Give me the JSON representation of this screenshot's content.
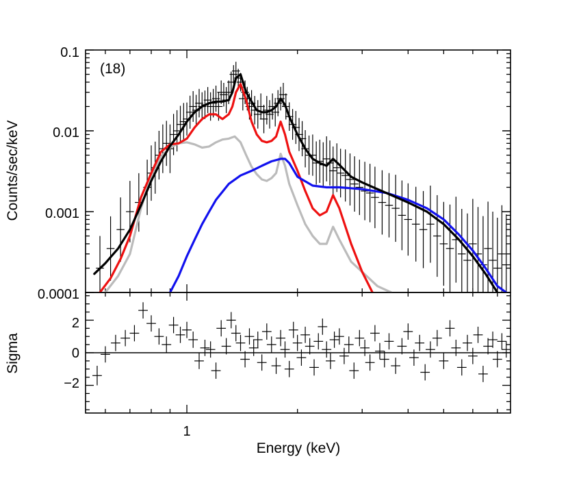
{
  "chart_data": [
    {
      "type": "line",
      "panel": "spectrum",
      "annotation": "(18)",
      "xlabel": "",
      "ylabel": "Counts/sec/keV",
      "xscale": "log",
      "yscale": "log",
      "xlim": [
        0.53,
        7.6
      ],
      "ylim": [
        0.0001,
        0.1
      ],
      "ytick_labels": [
        "0.1",
        "0.01",
        "0.001",
        "0.0001"
      ],
      "colors": {
        "total": "#000000",
        "red": "#ee1111",
        "gray": "#bbbbbb",
        "blue": "#1111ee",
        "data": "#000000"
      },
      "series": [
        {
          "name": "total model",
          "color": "#000000",
          "x": [
            0.56,
            0.6,
            0.65,
            0.7,
            0.75,
            0.8,
            0.85,
            0.9,
            0.95,
            1.0,
            1.05,
            1.1,
            1.15,
            1.2,
            1.25,
            1.3,
            1.33,
            1.36,
            1.4,
            1.45,
            1.5,
            1.55,
            1.6,
            1.65,
            1.7,
            1.75,
            1.8,
            1.85,
            1.9,
            2.0,
            2.1,
            2.2,
            2.3,
            2.4,
            2.5,
            2.6,
            2.8,
            3.0,
            3.3,
            3.6,
            4.0,
            4.5,
            5.0,
            5.5,
            6.0,
            6.5,
            7.0,
            7.5
          ],
          "y": [
            0.00017,
            0.00023,
            0.00035,
            0.0006,
            0.0012,
            0.0024,
            0.0042,
            0.0065,
            0.009,
            0.013,
            0.017,
            0.02,
            0.022,
            0.023,
            0.023,
            0.024,
            0.03,
            0.045,
            0.05,
            0.03,
            0.023,
            0.018,
            0.017,
            0.017,
            0.018,
            0.02,
            0.025,
            0.021,
            0.015,
            0.009,
            0.006,
            0.0045,
            0.004,
            0.0037,
            0.0045,
            0.0038,
            0.0027,
            0.0023,
            0.0019,
            0.0016,
            0.0013,
            0.001,
            0.0007,
            0.00045,
            0.00028,
            0.00017,
            0.0001,
            6e-05
          ]
        },
        {
          "name": "red component",
          "color": "#ee1111",
          "x": [
            0.58,
            0.62,
            0.66,
            0.7,
            0.75,
            0.8,
            0.85,
            0.9,
            0.95,
            1.0,
            1.05,
            1.1,
            1.15,
            1.2,
            1.25,
            1.3,
            1.33,
            1.36,
            1.4,
            1.45,
            1.5,
            1.55,
            1.6,
            1.65,
            1.7,
            1.75,
            1.8,
            1.85,
            1.9,
            2.0,
            2.1,
            2.2,
            2.3,
            2.4,
            2.5,
            2.6,
            2.8,
            3.0,
            3.2
          ],
          "y": [
            0.0001,
            0.00015,
            0.00026,
            0.0005,
            0.0015,
            0.003,
            0.0055,
            0.0068,
            0.007,
            0.008,
            0.011,
            0.014,
            0.016,
            0.016,
            0.014,
            0.016,
            0.02,
            0.03,
            0.038,
            0.024,
            0.013,
            0.009,
            0.0075,
            0.0072,
            0.0075,
            0.0085,
            0.013,
            0.009,
            0.0055,
            0.0032,
            0.0018,
            0.0011,
            0.0009,
            0.001,
            0.0016,
            0.0011,
            0.0004,
            0.00018,
            0.0001
          ]
        },
        {
          "name": "gray component",
          "color": "#bbbbbb",
          "x": [
            0.6,
            0.65,
            0.7,
            0.75,
            0.8,
            0.85,
            0.9,
            0.95,
            1.0,
            1.05,
            1.1,
            1.15,
            1.2,
            1.25,
            1.3,
            1.35,
            1.4,
            1.45,
            1.5,
            1.55,
            1.6,
            1.65,
            1.7,
            1.75,
            1.8,
            1.85,
            1.9,
            2.0,
            2.1,
            2.2,
            2.3,
            2.4,
            2.5,
            2.6,
            2.8,
            3.0,
            3.3,
            3.6
          ],
          "y": [
            0.0001,
            0.00016,
            0.0003,
            0.0011,
            0.0028,
            0.0048,
            0.0062,
            0.007,
            0.0072,
            0.0068,
            0.0062,
            0.0064,
            0.0072,
            0.0078,
            0.008,
            0.0085,
            0.0072,
            0.005,
            0.0036,
            0.0029,
            0.0025,
            0.0024,
            0.0026,
            0.003,
            0.0052,
            0.0037,
            0.0022,
            0.0012,
            0.0007,
            0.0005,
            0.0004,
            0.0004,
            0.00065,
            0.00045,
            0.00024,
            0.00018,
            0.00012,
            0.0001
          ]
        },
        {
          "name": "blue component",
          "color": "#1111ee",
          "x": [
            0.9,
            0.95,
            1.0,
            1.05,
            1.1,
            1.15,
            1.2,
            1.3,
            1.4,
            1.5,
            1.6,
            1.7,
            1.8,
            1.85,
            1.9,
            2.0,
            2.2,
            2.4,
            2.6,
            3.0,
            3.5,
            4.0,
            4.5,
            5.0,
            5.5,
            6.0,
            6.5,
            7.0,
            7.4
          ],
          "y": [
            0.0001,
            0.00016,
            0.00028,
            0.00045,
            0.0007,
            0.001,
            0.0014,
            0.0022,
            0.0028,
            0.0032,
            0.0037,
            0.0042,
            0.0045,
            0.0045,
            0.004,
            0.0027,
            0.0021,
            0.002,
            0.002,
            0.0019,
            0.0017,
            0.0014,
            0.0011,
            0.0008,
            0.00052,
            0.00033,
            0.0002,
            0.00012,
            0.0001
          ]
        }
      ],
      "data_points": {
        "x": [
          0.58,
          0.62,
          0.66,
          0.7,
          0.74,
          0.78,
          0.8,
          0.82,
          0.84,
          0.86,
          0.88,
          0.9,
          0.92,
          0.94,
          0.96,
          0.98,
          1.0,
          1.02,
          1.04,
          1.06,
          1.08,
          1.1,
          1.12,
          1.14,
          1.16,
          1.18,
          1.2,
          1.22,
          1.24,
          1.26,
          1.28,
          1.3,
          1.32,
          1.34,
          1.36,
          1.38,
          1.4,
          1.42,
          1.44,
          1.46,
          1.48,
          1.5,
          1.53,
          1.56,
          1.59,
          1.62,
          1.65,
          1.68,
          1.71,
          1.74,
          1.77,
          1.8,
          1.83,
          1.86,
          1.9,
          1.94,
          1.98,
          2.02,
          2.06,
          2.1,
          2.15,
          2.2,
          2.25,
          2.3,
          2.35,
          2.4,
          2.45,
          2.5,
          2.56,
          2.62,
          2.7,
          2.78,
          2.86,
          2.95,
          3.05,
          3.15,
          3.25,
          3.4,
          3.55,
          3.7,
          3.85,
          4.0,
          4.2,
          4.4,
          4.6,
          4.8,
          5.0,
          5.2,
          5.4,
          5.6,
          5.8,
          6.0,
          6.2,
          6.4,
          6.6,
          6.8,
          7.0,
          7.2,
          7.4
        ],
        "y": [
          0.0002,
          0.00035,
          0.0006,
          0.001,
          0.0013,
          0.002,
          0.003,
          0.0035,
          0.005,
          0.006,
          0.007,
          0.006,
          0.009,
          0.01,
          0.012,
          0.013,
          0.014,
          0.017,
          0.02,
          0.018,
          0.022,
          0.02,
          0.021,
          0.024,
          0.02,
          0.022,
          0.025,
          0.02,
          0.03,
          0.028,
          0.024,
          0.03,
          0.04,
          0.05,
          0.055,
          0.045,
          0.04,
          0.025,
          0.03,
          0.025,
          0.02,
          0.022,
          0.018,
          0.016,
          0.02,
          0.014,
          0.018,
          0.016,
          0.02,
          0.017,
          0.022,
          0.025,
          0.028,
          0.02,
          0.015,
          0.012,
          0.011,
          0.009,
          0.008,
          0.006,
          0.005,
          0.005,
          0.004,
          0.0042,
          0.0038,
          0.0045,
          0.004,
          0.0032,
          0.0035,
          0.003,
          0.0028,
          0.0025,
          0.0022,
          0.002,
          0.0018,
          0.0017,
          0.0015,
          0.0013,
          0.0012,
          0.0011,
          0.0009,
          0.0008,
          0.0007,
          0.0006,
          0.0007,
          0.0005,
          0.0004,
          0.00035,
          0.00045,
          0.0003,
          0.00025,
          0.0004,
          0.0003,
          0.00022,
          0.00035,
          0.00025,
          0.0002,
          0.0003,
          0.00022
        ],
        "yerr_factor": [
          2.5,
          2.5,
          2.5,
          2.4,
          2.3,
          2.2,
          2.2,
          2.1,
          2.0,
          2.0,
          1.9,
          2.0,
          1.8,
          1.8,
          1.7,
          1.7,
          1.6,
          1.6,
          1.55,
          1.55,
          1.5,
          1.5,
          1.5,
          1.45,
          1.5,
          1.5,
          1.45,
          1.5,
          1.4,
          1.4,
          1.45,
          1.4,
          1.35,
          1.3,
          1.3,
          1.3,
          1.3,
          1.4,
          1.4,
          1.4,
          1.45,
          1.45,
          1.5,
          1.5,
          1.45,
          1.5,
          1.5,
          1.5,
          1.45,
          1.5,
          1.45,
          1.4,
          1.4,
          1.45,
          1.5,
          1.55,
          1.6,
          1.6,
          1.65,
          1.7,
          1.75,
          1.8,
          1.85,
          1.85,
          1.9,
          1.9,
          1.9,
          2.0,
          2.0,
          2.0,
          2.1,
          2.1,
          2.2,
          2.2,
          2.3,
          2.3,
          2.4,
          2.5,
          2.5,
          2.6,
          2.7,
          2.8,
          2.9,
          3.0,
          3.0,
          3.2,
          3.3,
          3.5,
          3.4,
          3.6,
          3.8,
          3.6,
          3.8,
          4.0,
          3.8,
          4.0,
          4.2,
          4.0,
          4.2
        ]
      }
    },
    {
      "type": "scatter",
      "panel": "residuals",
      "xlabel": "Energy (keV)",
      "ylabel": "Sigma",
      "xscale": "log",
      "xlim": [
        0.53,
        7.6
      ],
      "ylim": [
        -3.7,
        3.7
      ],
      "xtick_labels": [
        "1"
      ],
      "ytick_labels": [
        "2",
        "0",
        "−2"
      ],
      "reference_line": 0,
      "data_points": {
        "x": [
          0.57,
          0.6,
          0.64,
          0.68,
          0.72,
          0.76,
          0.8,
          0.84,
          0.88,
          0.92,
          0.96,
          1.0,
          1.04,
          1.08,
          1.12,
          1.16,
          1.2,
          1.24,
          1.28,
          1.32,
          1.36,
          1.4,
          1.44,
          1.48,
          1.52,
          1.56,
          1.6,
          1.65,
          1.7,
          1.75,
          1.8,
          1.85,
          1.9,
          1.95,
          2.0,
          2.05,
          2.1,
          2.16,
          2.22,
          2.28,
          2.34,
          2.4,
          2.46,
          2.52,
          2.6,
          2.68,
          2.76,
          2.85,
          2.95,
          3.05,
          3.15,
          3.25,
          3.35,
          3.45,
          3.55,
          3.7,
          3.85,
          4.0,
          4.15,
          4.3,
          4.45,
          4.6,
          4.8,
          5.0,
          5.2,
          5.4,
          5.6,
          5.8,
          6.0,
          6.2,
          6.4,
          6.6,
          6.8,
          7.0,
          7.2,
          7.4
        ],
        "y": [
          -1.4,
          -0.1,
          0.6,
          0.9,
          1.2,
          2.6,
          1.8,
          1.0,
          0.5,
          1.7,
          1.1,
          1.4,
          0.8,
          -0.5,
          0.3,
          0.2,
          -1.1,
          1.5,
          0.4,
          2.0,
          1.2,
          0.6,
          -0.4,
          1.0,
          0.3,
          0.8,
          -0.6,
          1.3,
          0.5,
          -0.8,
          0.9,
          0.2,
          -1.0,
          1.4,
          0.6,
          -0.3,
          1.1,
          0.4,
          -0.9,
          0.7,
          1.6,
          0.2,
          -0.5,
          0.8,
          1.0,
          -0.2,
          0.5,
          -1.1,
          0.9,
          0.3,
          -0.6,
          1.2,
          0.1,
          -0.4,
          0.7,
          -0.8,
          0.4,
          1.3,
          -0.3,
          0.6,
          -1.2,
          0.2,
          0.9,
          -0.5,
          1.5,
          0.3,
          -0.9,
          0.6,
          -0.2,
          1.1,
          -1.3,
          0.4,
          0.8,
          -0.4,
          0.7,
          0.2
        ],
        "yerr": [
          0.6,
          0.5,
          0.5,
          0.5,
          0.5,
          0.5,
          0.5,
          0.5,
          0.5,
          0.5,
          0.5,
          0.5,
          0.5,
          0.5,
          0.5,
          0.5,
          0.5,
          0.5,
          0.5,
          0.5,
          0.5,
          0.5,
          0.5,
          0.5,
          0.5,
          0.5,
          0.5,
          0.5,
          0.5,
          0.5,
          0.5,
          0.5,
          0.5,
          0.5,
          0.5,
          0.5,
          0.5,
          0.5,
          0.5,
          0.5,
          0.5,
          0.5,
          0.5,
          0.5,
          0.5,
          0.5,
          0.5,
          0.5,
          0.5,
          0.5,
          0.5,
          0.5,
          0.5,
          0.5,
          0.5,
          0.5,
          0.5,
          0.5,
          0.5,
          0.5,
          0.5,
          0.5,
          0.5,
          0.5,
          0.5,
          0.5,
          0.5,
          0.5,
          0.5,
          0.5,
          0.5,
          0.5,
          0.5,
          0.5,
          0.5,
          0.5
        ]
      }
    }
  ]
}
